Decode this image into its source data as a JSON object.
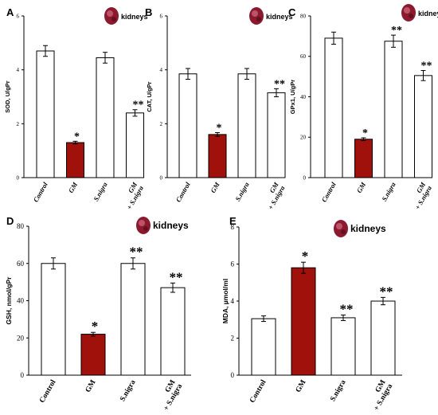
{
  "colors": {
    "control_fill": "#ffffff",
    "gm_fill": "#a0110b",
    "stroke": "#000000",
    "organ_icon": "#8b1a2e"
  },
  "icon": "kidney-icon",
  "chart_data": [
    {
      "type": "bar",
      "panel": "A",
      "organ_label": "kidneys",
      "ylabel": "SOD, U/gPr",
      "ylim": [
        0,
        6
      ],
      "yticks": [
        0,
        2,
        4,
        6
      ],
      "categories": [
        "Control",
        "GM",
        "S.nigra",
        "GM\n+ S.nigra"
      ],
      "values": [
        4.7,
        1.3,
        4.45,
        2.4
      ],
      "errors": [
        0.2,
        0.05,
        0.2,
        0.12
      ],
      "annotations": [
        "",
        "*",
        "",
        "**"
      ],
      "fills": [
        "white",
        "red",
        "white",
        "white"
      ]
    },
    {
      "type": "bar",
      "panel": "B",
      "organ_label": "kidneys",
      "ylabel": "CAT, U/gPr",
      "ylim": [
        0,
        6
      ],
      "yticks": [
        0,
        2,
        4,
        6
      ],
      "categories": [
        "Control",
        "GM",
        "S.nigra",
        "GM\n+ S.nigra"
      ],
      "values": [
        3.85,
        1.6,
        3.85,
        3.15
      ],
      "errors": [
        0.2,
        0.07,
        0.2,
        0.15
      ],
      "annotations": [
        "",
        "*",
        "",
        "**"
      ],
      "fills": [
        "white",
        "red",
        "white",
        "white"
      ]
    },
    {
      "type": "bar",
      "panel": "C",
      "organ_label": "kidneys",
      "ylabel": "GPx1, U/gPr",
      "ylim": [
        0,
        80
      ],
      "yticks": [
        0,
        20,
        40,
        60,
        80
      ],
      "categories": [
        "Control",
        "GM",
        "S.nigra",
        "GM\n+ S.nigra"
      ],
      "values": [
        69,
        19,
        67.5,
        50.5
      ],
      "errors": [
        3,
        0.7,
        3,
        2.5
      ],
      "annotations": [
        "",
        "*",
        "**",
        "**"
      ],
      "fills": [
        "white",
        "red",
        "white",
        "white"
      ]
    },
    {
      "type": "bar",
      "panel": "D",
      "organ_label": "kidneys",
      "ylabel": "GSH, nmol/gPr",
      "ylim": [
        0,
        80
      ],
      "yticks": [
        0,
        20,
        40,
        60,
        80
      ],
      "categories": [
        "Control",
        "GM",
        "S.nigra",
        "GM\n+ S.nigra"
      ],
      "values": [
        60,
        22,
        60,
        47
      ],
      "errors": [
        3,
        1,
        3,
        2.5
      ],
      "annotations": [
        "",
        "*",
        "**",
        "**"
      ],
      "fills": [
        "white",
        "red",
        "white",
        "white"
      ]
    },
    {
      "type": "bar",
      "panel": "E",
      "organ_label": "kidneys",
      "ylabel": "MDA, µmol/ml",
      "ylim": [
        0,
        8
      ],
      "yticks": [
        0,
        2,
        4,
        6,
        8
      ],
      "categories": [
        "Control",
        "GM",
        "S.nigra",
        "GM\n+ S.nigra"
      ],
      "values": [
        3.05,
        5.8,
        3.1,
        4.0
      ],
      "errors": [
        0.15,
        0.3,
        0.15,
        0.2
      ],
      "annotations": [
        "",
        "*",
        "**",
        "**"
      ],
      "fills": [
        "white",
        "red",
        "white",
        "white"
      ]
    }
  ]
}
